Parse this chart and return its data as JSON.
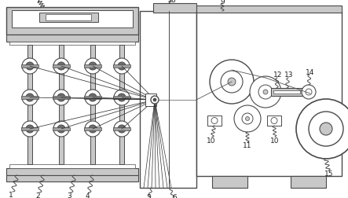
{
  "bg_color": "#ffffff",
  "line_color": "#4a4a4a",
  "light_gray": "#c8c8c8",
  "mid_gray": "#a0a0a0",
  "dark_gray": "#707070",
  "fig_width": 4.43,
  "fig_height": 2.53,
  "dpi": 100
}
